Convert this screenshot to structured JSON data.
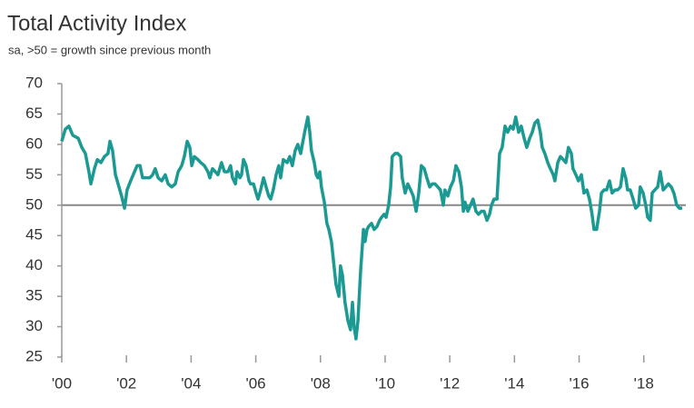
{
  "chart_data": {
    "type": "line",
    "title": "Total Activity Index",
    "subtitle": "sa, >50 = growth since previous month",
    "color": "#1a9a92",
    "reference_line": 50,
    "xlim": [
      2000,
      2019.3
    ],
    "xticks": [
      {
        "value": 2000,
        "label": "'00"
      },
      {
        "value": 2002,
        "label": "'02"
      },
      {
        "value": 2004,
        "label": "'04"
      },
      {
        "value": 2006,
        "label": "'06"
      },
      {
        "value": 2008,
        "label": "'08"
      },
      {
        "value": 2010,
        "label": "'10"
      },
      {
        "value": 2012,
        "label": "'12"
      },
      {
        "value": 2014,
        "label": "'14"
      },
      {
        "value": 2016,
        "label": "'16"
      },
      {
        "value": 2018,
        "label": "'18"
      }
    ],
    "ylim": [
      25,
      70
    ],
    "yticks": [
      25,
      30,
      35,
      40,
      45,
      50,
      55,
      60,
      65,
      70
    ],
    "x": [
      2000,
      2000.11,
      2000.22,
      2000.34,
      2000.51,
      2000.62,
      2000.73,
      2000.84,
      2000.9,
      2001.01,
      2001.1,
      2001.21,
      2001.32,
      2001.43,
      2001.49,
      2001.57,
      2001.66,
      2001.77,
      2001.85,
      2001.94,
      2002.02,
      2002.13,
      2002.25,
      2002.33,
      2002.42,
      2002.5,
      2002.61,
      2002.72,
      2002.81,
      2002.89,
      2002.98,
      2003.09,
      2003.2,
      2003.29,
      2003.4,
      2003.51,
      2003.6,
      2003.71,
      2003.79,
      2003.88,
      2003.96,
      2004.02,
      2004.1,
      2004.21,
      2004.3,
      2004.41,
      2004.52,
      2004.58,
      2004.66,
      2004.75,
      2004.83,
      2004.94,
      2005.03,
      2005.14,
      2005.22,
      2005.28,
      2005.37,
      2005.42,
      2005.51,
      2005.56,
      2005.62,
      2005.7,
      2005.79,
      2005.84,
      2005.93,
      2006.01,
      2006.07,
      2006.15,
      2006.24,
      2006.32,
      2006.4,
      2006.46,
      2006.54,
      2006.63,
      2006.71,
      2006.77,
      2006.85,
      2006.97,
      2007.05,
      2007.13,
      2007.22,
      2007.3,
      2007.39,
      2007.44,
      2007.53,
      2007.61,
      2007.67,
      2007.72,
      2007.81,
      2007.87,
      2007.92,
      2007.98,
      2008.03,
      2008.12,
      2008.2,
      2008.26,
      2008.34,
      2008.4,
      2008.48,
      2008.57,
      2008.62,
      2008.68,
      2008.76,
      2008.85,
      2008.93,
      2008.99,
      2009.04,
      2009.1,
      2009.16,
      2009.24,
      2009.33,
      2009.38,
      2009.44,
      2009.49,
      2009.58,
      2009.66,
      2009.75,
      2009.83,
      2009.89,
      2009.97,
      2010.03,
      2010.11,
      2010.17,
      2010.22,
      2010.31,
      2010.39,
      2010.48,
      2010.53,
      2010.62,
      2010.7,
      2010.79,
      2010.87,
      2010.96,
      2011.04,
      2011.12,
      2011.21,
      2011.29,
      2011.38,
      2011.46,
      2011.54,
      2011.63,
      2011.71,
      2011.8,
      2011.85,
      2011.94,
      2012.02,
      2012.11,
      2012.19,
      2012.28,
      2012.36,
      2012.42,
      2012.47,
      2012.56,
      2012.64,
      2012.72,
      2012.81,
      2012.89,
      2012.98,
      2013.06,
      2013.15,
      2013.23,
      2013.29,
      2013.37,
      2013.46,
      2013.54,
      2013.62,
      2013.71,
      2013.79,
      2013.88,
      2013.96,
      2014.04,
      2014.13,
      2014.21,
      2014.3,
      2014.38,
      2014.47,
      2014.55,
      2014.63,
      2014.72,
      2014.8,
      2014.86,
      2014.94,
      2015.03,
      2015.11,
      2015.2,
      2015.25,
      2015.34,
      2015.42,
      2015.51,
      2015.59,
      2015.67,
      2015.76,
      2015.81,
      2015.9,
      2015.98,
      2016.07,
      2016.15,
      2016.24,
      2016.32,
      2016.4,
      2016.46,
      2016.54,
      2016.63,
      2016.69,
      2016.77,
      2016.85,
      2016.94,
      2017.02,
      2017.11,
      2017.19,
      2017.28,
      2017.36,
      2017.44,
      2017.5,
      2017.58,
      2017.67,
      2017.75,
      2017.84,
      2017.89,
      2017.98,
      2018.06,
      2018.12,
      2018.2,
      2018.26,
      2018.34,
      2018.43,
      2018.51,
      2018.6,
      2018.68,
      2018.76,
      2018.85,
      2018.93,
      2019.02,
      2019.1,
      2019.19
    ],
    "values": [
      60.5,
      62.5,
      63,
      61.5,
      61,
      59.5,
      58.5,
      55.5,
      53.5,
      56,
      57.5,
      57,
      58,
      58.5,
      60.5,
      59,
      55,
      53,
      51.5,
      49.5,
      52.5,
      54,
      55.5,
      56.5,
      56.5,
      54.5,
      54.5,
      54.5,
      55,
      56,
      54.5,
      54,
      55,
      53.5,
      53,
      53.5,
      55.5,
      56.5,
      58,
      60.5,
      59.5,
      56.5,
      58,
      57.5,
      57,
      56.5,
      55.5,
      54.5,
      56,
      55.5,
      55,
      57,
      55.5,
      55.5,
      56.5,
      54.5,
      53.5,
      55.5,
      54.5,
      55,
      57.5,
      56.5,
      54,
      53.5,
      53.5,
      52,
      51,
      52.5,
      54.5,
      53,
      51.5,
      51,
      52.5,
      55,
      56.5,
      54.5,
      57.5,
      57,
      58,
      56.5,
      59,
      60,
      58.5,
      60,
      62.5,
      64.5,
      62,
      59,
      57,
      55,
      54.5,
      55.5,
      53,
      50.5,
      47,
      46,
      44,
      41,
      37,
      35,
      40,
      38.5,
      34,
      31,
      29.5,
      34,
      30,
      28,
      31,
      39,
      46,
      44,
      46,
      46.5,
      47,
      46,
      46.5,
      47.5,
      48,
      48.5,
      48,
      50,
      53,
      58,
      58.5,
      58.5,
      58,
      54.5,
      52,
      53.5,
      52.5,
      51.5,
      49,
      52,
      56.5,
      56,
      54.5,
      53,
      53.5,
      53.5,
      53,
      52.5,
      50,
      52.5,
      51.5,
      53,
      54,
      56.5,
      55.5,
      53,
      49,
      50.5,
      49,
      50,
      51,
      49,
      48.5,
      49,
      49,
      47.5,
      48.5,
      50,
      51,
      51,
      58.5,
      59.5,
      63,
      62,
      63,
      62.5,
      64.5,
      62,
      63,
      61,
      59.5,
      61,
      62,
      63.5,
      64,
      62,
      59.5,
      58.5,
      57,
      56,
      55,
      54,
      57,
      58,
      57.5,
      57,
      59.5,
      58.5,
      56,
      55,
      54,
      55,
      52,
      52.5,
      51,
      48.5,
      46,
      46,
      49,
      52,
      52.5,
      52.5,
      54,
      52,
      52.5,
      52.5,
      53,
      56,
      54.5,
      52.5,
      52.5,
      51,
      49.5,
      50,
      53,
      52,
      50,
      48,
      47.5,
      52,
      52.5,
      53,
      55.5,
      52.5,
      53,
      53.5,
      53,
      52,
      50,
      49.5,
      49.5
    ]
  }
}
